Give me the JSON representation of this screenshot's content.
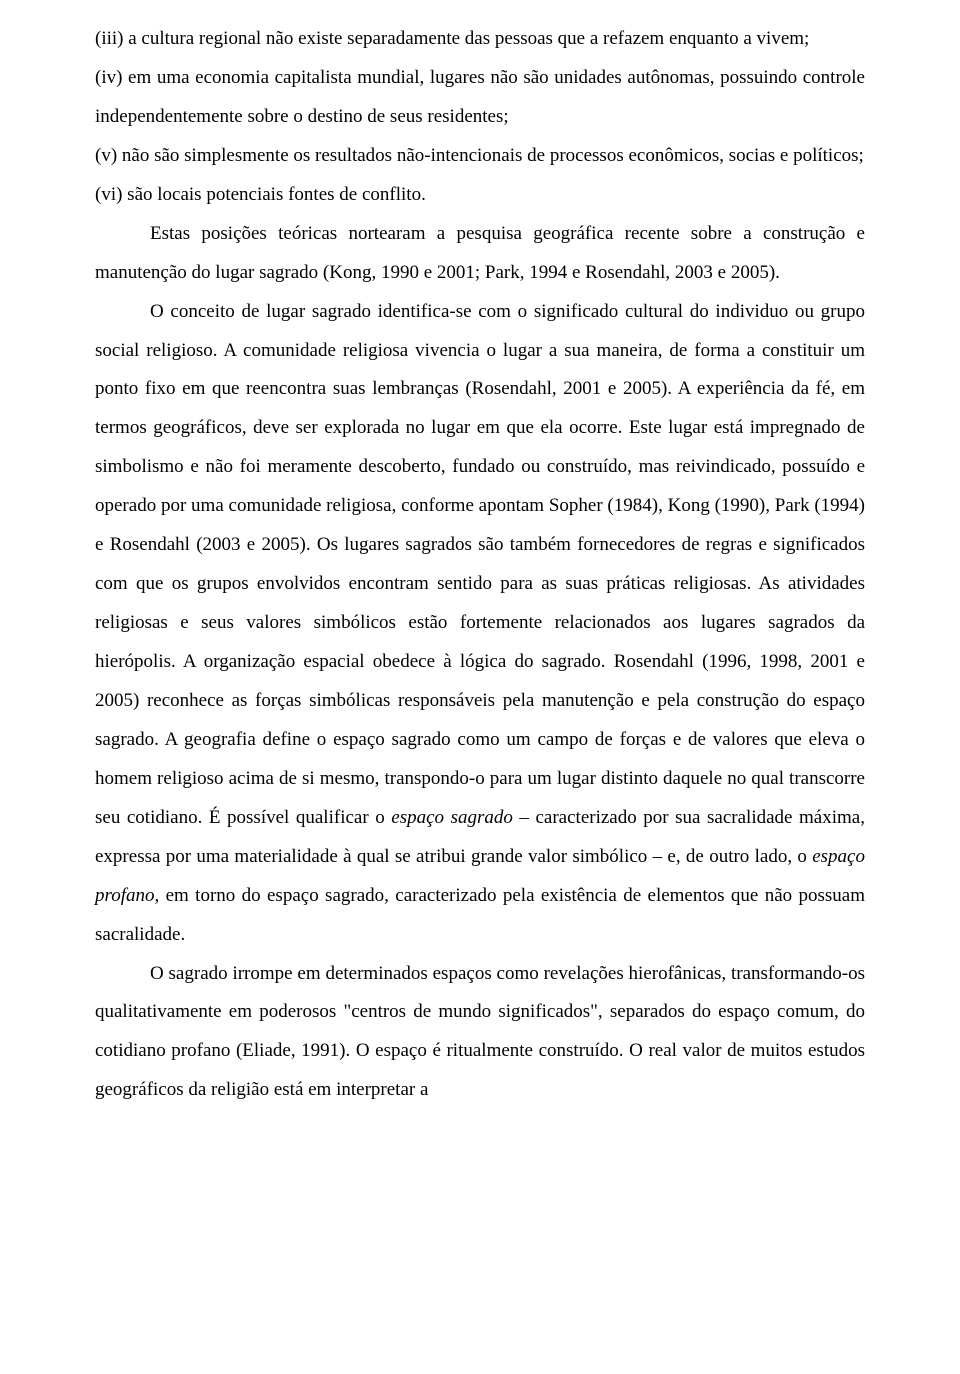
{
  "document": {
    "list_item_iii": "(iii) a cultura regional não existe separadamente das pessoas que a refazem enquanto a vivem;",
    "list_item_iv": "(iv) em uma economia capitalista mundial, lugares não são unidades autônomas, possuindo controle independentemente sobre o destino de seus residentes;",
    "list_item_v": "(v) não são simplesmente os resultados não-intencionais de processos econômicos, socias e políticos;",
    "list_item_vi": "(vi) são locais potenciais fontes de conflito.",
    "para1": "Estas posições teóricas nortearam a pesquisa geográfica recente sobre a construção e manutenção do lugar sagrado (Kong, 1990 e 2001; Park, 1994 e Rosendahl, 2003 e 2005).",
    "para2_part1": "O conceito de lugar sagrado identifica-se com o significado cultural do individuo ou grupo social religioso. A comunidade religiosa vivencia o lugar a sua maneira, de forma a constituir um ponto fixo em que reencontra suas lembranças (Rosendahl, 2001 e 2005). A experiência da fé, em termos geográficos, deve ser explorada no lugar em que ela ocorre. Este lugar está impregnado de simbolismo e não foi meramente descoberto, fundado ou construído, mas reivindicado, possuído e operado por uma comunidade religiosa, conforme apontam Sopher (1984), Kong (1990), Park (1994) e Rosendahl (2003 e 2005). Os lugares sagrados são também fornecedores de regras e significados com que os grupos envolvidos encontram sentido para as suas práticas religiosas. As atividades religiosas e seus valores simbólicos estão fortemente relacionados aos lugares sagrados da hierópolis. A organização espacial obedece à lógica do sagrado. Rosendahl (1996, 1998, 2001 e 2005) reconhece as forças simbólicas responsáveis pela manutenção e pela construção do espaço sagrado. A geografia define o espaço sagrado como um campo de forças e de valores que eleva o homem religioso acima de si mesmo, transpondo-o para um lugar distinto daquele no qual transcorre seu cotidiano. É possível qualificar o ",
    "para2_italic1": "espaço sagrado",
    "para2_part2": " – caracterizado por sua sacralidade máxima, expressa por uma materialidade à qual se atribui grande valor simbólico – e, de outro lado, o ",
    "para2_italic2": "espaço profano,",
    "para2_part3": " em torno do espaço sagrado, caracterizado pela existência de elementos que não possuam sacralidade.",
    "para3": "O sagrado irrompe em determinados espaços como revelações hierofânicas, transformando-os qualitativamente em poderosos \"centros de mundo significados\", separados do espaço comum, do cotidiano profano (Eliade, 1991). O espaço é ritualmente construído. O real valor de muitos estudos geográficos da religião está em interpretar a"
  }
}
